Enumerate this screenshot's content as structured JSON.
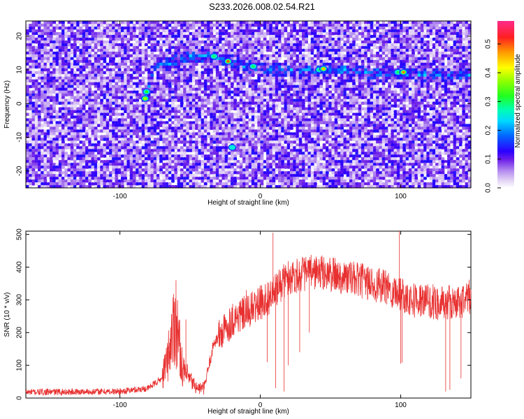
{
  "title": "S233.2026.008.02.54.R21",
  "chart_data": [
    {
      "type": "heatmap",
      "name": "spectrogram",
      "title": "S233.2026.008.02.54.R21",
      "xlabel": "Height of straight line (km)",
      "ylabel": "Frequency (Hz)",
      "xlim": [
        -167,
        150
      ],
      "ylim": [
        -25,
        24.5
      ],
      "xticks": [
        -100,
        0,
        100
      ],
      "yticks": [
        -20,
        -10,
        0,
        10,
        20
      ],
      "colorbar": {
        "label": "Normalized spectral amplitude",
        "range": [
          0.0,
          0.58
        ],
        "ticks": [
          "0.0",
          "0.1",
          "0.2",
          "0.3",
          "0.4",
          "0.5"
        ]
      },
      "ridge": {
        "description_points_x": [
          -82,
          -75,
          -50,
          -35,
          -20,
          -10,
          0,
          20,
          40,
          60,
          80,
          100,
          120,
          145
        ],
        "description_points_y": [
          2,
          11,
          14,
          14,
          12.5,
          11,
          10.5,
          10,
          10,
          10,
          9,
          9,
          8.5,
          8.5
        ]
      },
      "peaks": [
        {
          "x": -82,
          "y": 1.5,
          "amp": 0.38
        },
        {
          "x": -81,
          "y": 3.5,
          "amp": 0.32
        },
        {
          "x": -33,
          "y": 14,
          "amp": 0.3
        },
        {
          "x": -23,
          "y": 12.5,
          "amp": 0.5
        },
        {
          "x": -5,
          "y": 11,
          "amp": 0.3
        },
        {
          "x": 42,
          "y": 10,
          "amp": 0.3
        },
        {
          "x": 45,
          "y": 10.3,
          "amp": 0.45
        },
        {
          "x": 98,
          "y": 9.3,
          "amp": 0.3
        },
        {
          "x": 102,
          "y": 9.3,
          "amp": 0.48
        },
        {
          "x": -20,
          "y": -13,
          "amp": 0.25
        }
      ]
    },
    {
      "type": "line",
      "name": "snr",
      "xlabel": "Height of straight line (km)",
      "ylabel": "SNR (10 * v/v)",
      "xlim": [
        -167,
        150
      ],
      "ylim": [
        0,
        510
      ],
      "xticks": [
        -100,
        0,
        100
      ],
      "yticks": [
        0,
        100,
        200,
        300,
        400,
        500
      ],
      "color": "#e83030",
      "baseline_x": [
        -167,
        -100,
        -80,
        -70,
        -66,
        -61,
        -59,
        -55,
        -45,
        -40,
        -33,
        -25,
        -20,
        -10,
        0,
        10,
        15,
        20,
        30,
        40,
        60,
        80,
        100,
        110,
        130,
        140,
        150
      ],
      "baseline_y": [
        18,
        20,
        30,
        60,
        120,
        240,
        200,
        80,
        30,
        30,
        170,
        210,
        240,
        260,
        290,
        320,
        350,
        370,
        380,
        385,
        370,
        350,
        320,
        300,
        290,
        290,
        310
      ],
      "spikes": [
        {
          "x": -60,
          "y": 360
        },
        {
          "x": -53,
          "y": 240
        },
        {
          "x": 9,
          "y": 505
        },
        {
          "x": 99,
          "y": 510
        },
        {
          "x": -10,
          "y": 330
        },
        {
          "x": 100,
          "y": 105
        },
        {
          "x": 101,
          "y": 108
        },
        {
          "x": 11,
          "y": 30
        },
        {
          "x": 17,
          "y": 20
        },
        {
          "x": 132,
          "y": 20
        },
        {
          "x": 135,
          "y": 25
        },
        {
          "x": 143,
          "y": 60
        },
        {
          "x": 5,
          "y": 110
        },
        {
          "x": 28,
          "y": 140
        },
        {
          "x": 35,
          "y": 200
        },
        {
          "x": 20,
          "y": 100
        }
      ]
    }
  ]
}
